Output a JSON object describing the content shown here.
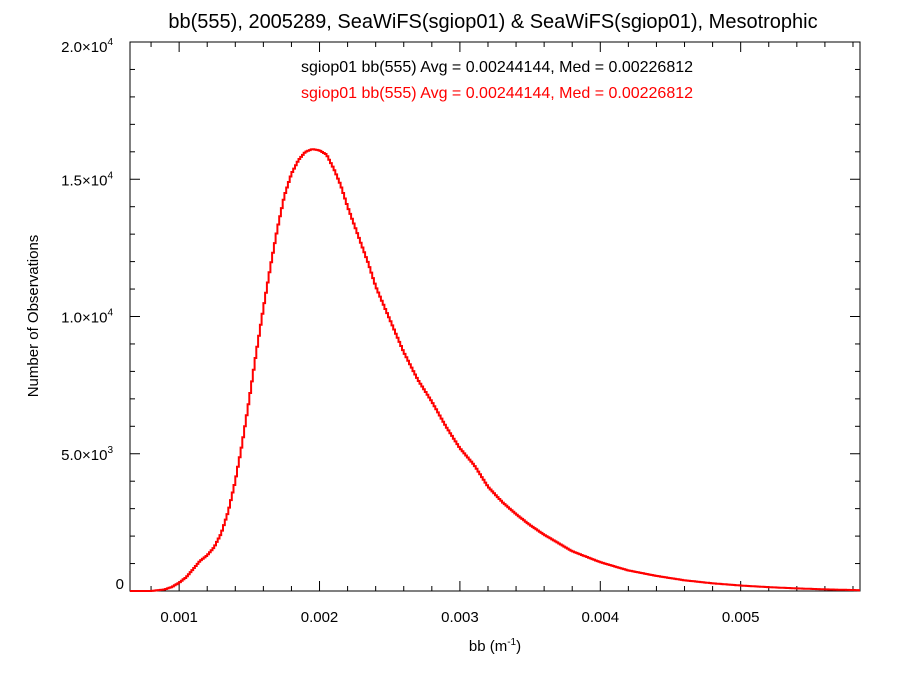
{
  "chart_data": {
    "type": "histogram",
    "title": "bb(555), 2005289, SeaWiFS(sgiop01) & SeaWiFS(sgiop01), Mesotrophic",
    "xlabel": {
      "base": "bb (m",
      "sup": "-1",
      "tail": ")"
    },
    "ylabel": "Number of Observations",
    "xlim": [
      0.00065,
      0.00585
    ],
    "ylim": [
      0,
      20000
    ],
    "x_ticks": [
      0.001,
      0.002,
      0.003,
      0.004,
      0.005
    ],
    "x_tick_labels": [
      "0.001",
      "0.002",
      "0.003",
      "0.004",
      "0.005"
    ],
    "y_ticks": [
      {
        "value": 0,
        "mant": "0",
        "exp": ""
      },
      {
        "value": 5000,
        "mant": "5.0×10",
        "exp": "3"
      },
      {
        "value": 10000,
        "mant": "1.0×10",
        "exp": "4"
      },
      {
        "value": 15000,
        "mant": "1.5×10",
        "exp": "4"
      },
      {
        "value": 20000,
        "mant": "2.0×10",
        "exp": "4"
      }
    ],
    "grid": false,
    "annotations": [
      {
        "text": "sgiop01 bb(555) Avg = 0.00244144, Med = 0.00226812",
        "color": "#000000"
      },
      {
        "text": "sgiop01 bb(555) Avg = 0.00244144, Med = 0.00226812",
        "color": "#ff0000"
      }
    ],
    "series": [
      {
        "color": "#ff0000",
        "style": "step",
        "x": [
          0.00065,
          0.0008,
          0.0009,
          0.00095,
          0.001,
          0.00105,
          0.0011,
          0.00115,
          0.0012,
          0.00125,
          0.0013,
          0.00135,
          0.0014,
          0.00145,
          0.0015,
          0.00155,
          0.0016,
          0.00165,
          0.0017,
          0.00175,
          0.0018,
          0.00185,
          0.0019,
          0.00195,
          0.002,
          0.00205,
          0.0021,
          0.00215,
          0.0022,
          0.00225,
          0.0023,
          0.00235,
          0.0024,
          0.00245,
          0.0025,
          0.00255,
          0.0026,
          0.0027,
          0.0028,
          0.0029,
          0.003,
          0.0031,
          0.0032,
          0.0033,
          0.0034,
          0.0035,
          0.0036,
          0.0037,
          0.0038,
          0.0039,
          0.004,
          0.0042,
          0.0044,
          0.0046,
          0.0048,
          0.005,
          0.0052,
          0.0054,
          0.0056,
          0.00585
        ],
        "y": [
          0,
          0,
          60,
          150,
          300,
          500,
          800,
          1100,
          1300,
          1600,
          2100,
          2900,
          4000,
          5400,
          7000,
          8700,
          10300,
          11800,
          13200,
          14400,
          15200,
          15700,
          16000,
          16100,
          16050,
          15900,
          15400,
          14800,
          14000,
          13300,
          12600,
          11900,
          11100,
          10500,
          9900,
          9300,
          8700,
          7700,
          6900,
          6000,
          5200,
          4600,
          3800,
          3250,
          2800,
          2400,
          2050,
          1750,
          1450,
          1250,
          1050,
          750,
          550,
          390,
          280,
          200,
          140,
          95,
          60,
          30
        ]
      }
    ]
  }
}
